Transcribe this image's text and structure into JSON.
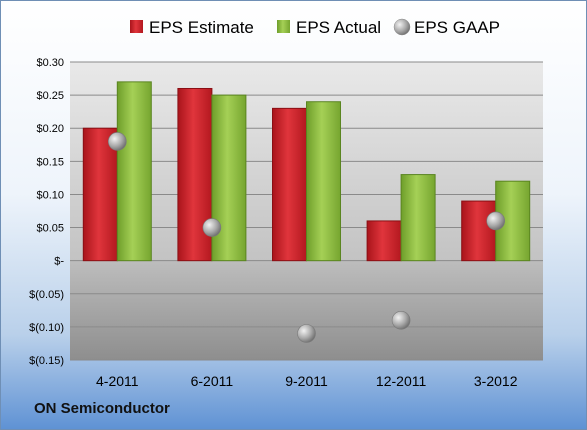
{
  "company_name": "ON Semiconductor",
  "chart_data": {
    "type": "bar",
    "title": "",
    "xlabel": "",
    "ylabel": "",
    "categories": [
      "4-2011",
      "6-2011",
      "9-2011",
      "12-2011",
      "3-2012"
    ],
    "series": [
      {
        "name": "EPS Estimate",
        "type": "bar",
        "color": "#cc2229",
        "values": [
          0.2,
          0.26,
          0.23,
          0.06,
          0.09
        ]
      },
      {
        "name": "EPS Actual",
        "type": "bar",
        "color": "#8bbd3c",
        "values": [
          0.27,
          0.25,
          0.24,
          0.13,
          0.12
        ]
      },
      {
        "name": "EPS GAAP",
        "type": "scatter",
        "color": "#a6a6a6",
        "values": [
          0.18,
          0.05,
          -0.11,
          -0.09,
          0.06
        ]
      }
    ],
    "ylim": [
      -0.15,
      0.3
    ],
    "yticks": [
      0.3,
      0.25,
      0.2,
      0.15,
      0.1,
      0.05,
      0,
      -0.05,
      -0.1,
      -0.15
    ],
    "ytick_labels": [
      "$0.30",
      "$0.25",
      "$0.20",
      "$0.15",
      "$0.10",
      "$0.05",
      "$-",
      "$(0.05)",
      "$(0.10)",
      "$(0.15)"
    ],
    "grid": true,
    "legend_position": "top"
  }
}
